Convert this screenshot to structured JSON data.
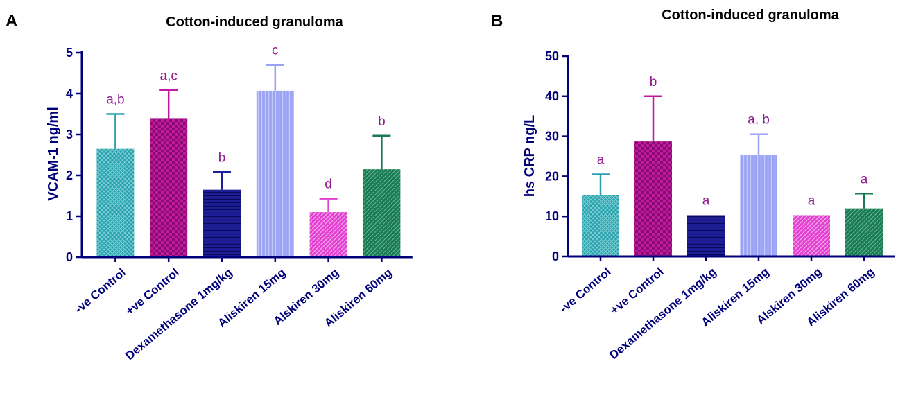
{
  "panels": [
    {
      "letter": "A"
    },
    {
      "letter": "B"
    }
  ],
  "chart_data": [
    {
      "type": "bar",
      "title": "Cotton-induced granuloma",
      "xlabel": "",
      "ylabel": "VCAM-1 ng/ml",
      "ylim": [
        0,
        5
      ],
      "yticks": [
        0,
        1,
        2,
        3,
        4,
        5
      ],
      "categories": [
        "-ve Control",
        "+ve Control",
        "Dexamethasone 1mg/kg",
        "Aliskiren 15mg",
        "Alskiren 30mg",
        "Aliskiren 60mg"
      ],
      "values": [
        2.65,
        3.4,
        1.65,
        4.07,
        1.1,
        2.15
      ],
      "error": [
        0.85,
        0.68,
        0.43,
        0.63,
        0.33,
        0.82
      ],
      "significance": [
        "a,b",
        "a,c",
        "b",
        "c",
        "d",
        "b"
      ],
      "colors": [
        "#2aa2ad",
        "#c01a9f",
        "#1e1e96",
        "#9aa2f5",
        "#e33fd0",
        "#1a7a52"
      ],
      "patterns": [
        "crosshatch",
        "checker",
        "hlines",
        "vlines",
        "diagonal",
        "diagonal-dark"
      ],
      "grid": false
    },
    {
      "type": "bar",
      "title": "Cotton-induced granuloma",
      "xlabel": "",
      "ylabel": "hs CRP ng/L",
      "ylim": [
        0,
        50
      ],
      "yticks": [
        0,
        10,
        20,
        30,
        40,
        50
      ],
      "categories": [
        "-ve Control",
        "+ve Control",
        "Dexamethasone 1mg/kg",
        "Aliskiren 15mg",
        "Alskiren 30mg",
        "Aliskiren 60mg"
      ],
      "values": [
        15.3,
        28.7,
        10.3,
        25.3,
        10.3,
        12.0
      ],
      "error": [
        5.2,
        11.3,
        0,
        5.2,
        0,
        3.7
      ],
      "significance": [
        "a",
        "b",
        "a",
        "a, b",
        "a",
        "a"
      ],
      "colors": [
        "#2aa2ad",
        "#c01a9f",
        "#1e1e96",
        "#9aa2f5",
        "#e33fd0",
        "#1a7a52"
      ],
      "patterns": [
        "crosshatch",
        "checker",
        "hlines",
        "vlines",
        "diagonal",
        "diagonal-dark"
      ],
      "grid": false
    }
  ]
}
